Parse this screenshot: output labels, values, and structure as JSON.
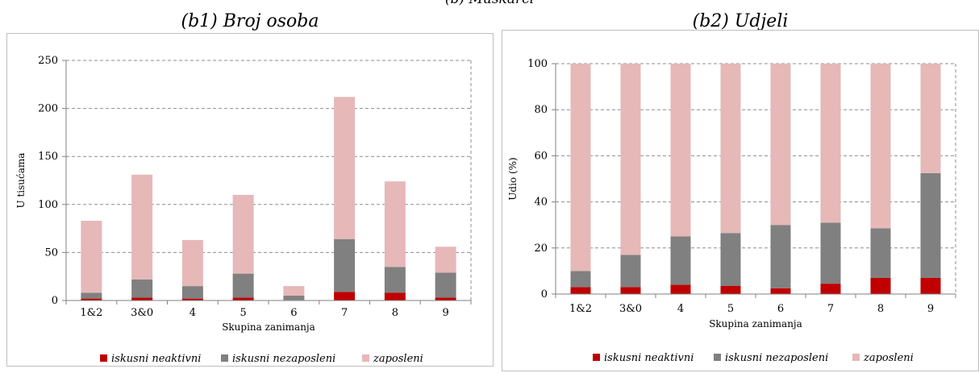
{
  "figure": {
    "top_title": "(b) Muškarci"
  },
  "chart_data": [
    {
      "type": "bar",
      "stacked": true,
      "title": "(b1) Broj osoba",
      "xlabel": "Skupina zanimanja",
      "ylabel": "U tisućama",
      "categories": [
        "1&2",
        "3&0",
        "4",
        "5",
        "6",
        "7",
        "8",
        "9"
      ],
      "ylim": [
        0,
        250
      ],
      "yticks": [
        "0",
        "50",
        "100",
        "150",
        "200",
        "250"
      ],
      "grid": true,
      "legend_position": "bottom",
      "series": [
        {
          "name": "iskusni neaktivni",
          "color": "#c00000",
          "values": [
            2,
            3,
            2,
            3,
            0.5,
            9,
            8,
            3
          ]
        },
        {
          "name": "iskusni nezaposleni",
          "color": "#808080",
          "values": [
            6,
            19,
            13,
            25,
            4.5,
            55,
            27,
            26
          ]
        },
        {
          "name": "zaposleni",
          "color": "#e6b8b8",
          "values": [
            75,
            109,
            48,
            82,
            10,
            148,
            89,
            27
          ]
        }
      ]
    },
    {
      "type": "bar",
      "stacked": true,
      "title": "(b2) Udjeli",
      "xlabel": "Skupina zanimanja",
      "ylabel": "Udio (%)",
      "categories": [
        "1&2",
        "3&0",
        "4",
        "5",
        "6",
        "7",
        "8",
        "9"
      ],
      "ylim": [
        0,
        100
      ],
      "yticks": [
        "0",
        "20",
        "40",
        "60",
        "80",
        "100"
      ],
      "grid": true,
      "legend_position": "bottom",
      "series": [
        {
          "name": "iskusni neaktivni",
          "color": "#c00000",
          "values": [
            3,
            3,
            4,
            3.5,
            2.5,
            4.5,
            7,
            7
          ]
        },
        {
          "name": "iskusni nezaposleni",
          "color": "#808080",
          "values": [
            7,
            14,
            21,
            23,
            27.5,
            26.5,
            21.5,
            45.5
          ]
        },
        {
          "name": "zaposleni",
          "color": "#e6b8b8",
          "values": [
            90,
            83,
            75,
            73.5,
            70,
            69,
            71.5,
            47.5
          ]
        }
      ]
    }
  ]
}
